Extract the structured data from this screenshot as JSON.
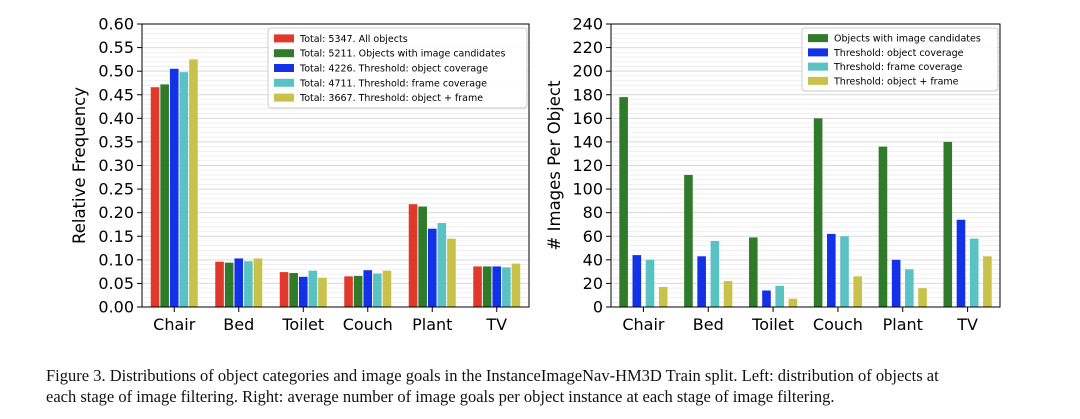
{
  "chart_data": [
    {
      "type": "bar",
      "title": "",
      "xlabel": "",
      "ylabel": "Relative Frequency",
      "ylim": [
        0,
        0.6
      ],
      "yticks": [
        "0.00",
        "0.05",
        "0.10",
        "0.15",
        "0.20",
        "0.25",
        "0.30",
        "0.35",
        "0.40",
        "0.45",
        "0.50",
        "0.55",
        "0.60"
      ],
      "grid": true,
      "legend_position": "top-right",
      "categories": [
        "Chair",
        "Bed",
        "Toilet",
        "Couch",
        "Plant",
        "TV"
      ],
      "series": [
        {
          "name": "Total: 5347. All objects",
          "color": "#e0392b",
          "values": [
            0.466,
            0.096,
            0.074,
            0.065,
            0.218,
            0.086
          ]
        },
        {
          "name": "Total: 5211. Objects with image candidates",
          "color": "#2f7a2b",
          "values": [
            0.472,
            0.094,
            0.072,
            0.066,
            0.213,
            0.086
          ]
        },
        {
          "name": "Total: 4226. Threshold: object coverage",
          "color": "#1332e8",
          "values": [
            0.505,
            0.103,
            0.064,
            0.078,
            0.166,
            0.086
          ]
        },
        {
          "name": "Total: 4711. Threshold: frame coverage",
          "color": "#5bc2c4",
          "values": [
            0.498,
            0.097,
            0.077,
            0.071,
            0.178,
            0.084
          ]
        },
        {
          "name": "Total: 3667. Threshold: object + frame",
          "color": "#c9c24a",
          "values": [
            0.525,
            0.103,
            0.062,
            0.077,
            0.145,
            0.092
          ]
        }
      ]
    },
    {
      "type": "bar",
      "title": "",
      "xlabel": "",
      "ylabel": "# Images Per Object",
      "ylim": [
        0,
        240
      ],
      "yticks": [
        "0",
        "20",
        "40",
        "60",
        "80",
        "100",
        "120",
        "140",
        "160",
        "180",
        "200",
        "220",
        "240"
      ],
      "grid": true,
      "legend_position": "top-right",
      "categories": [
        "Chair",
        "Bed",
        "Toilet",
        "Couch",
        "Plant",
        "TV"
      ],
      "series": [
        {
          "name": "Objects with image candidates",
          "color": "#2f7a2b",
          "values": [
            178,
            112,
            59,
            160,
            136,
            140
          ]
        },
        {
          "name": "Threshold: object coverage",
          "color": "#1332e8",
          "values": [
            44,
            43,
            14,
            62,
            40,
            74
          ]
        },
        {
          "name": "Threshold: frame coverage",
          "color": "#5bc2c4",
          "values": [
            40,
            56,
            18,
            60,
            32,
            58
          ]
        },
        {
          "name": "Threshold: object + frame",
          "color": "#c9c24a",
          "values": [
            17,
            22,
            7,
            26,
            16,
            43
          ]
        }
      ]
    }
  ],
  "caption": {
    "line1": "Figure 3. Distributions of object categories and image goals in the InstanceImageNav-HM3D Train split. Left: distribution of objects at",
    "line2": "each stage of image filtering. Right: average number of image goals per object instance at each stage of image filtering."
  }
}
